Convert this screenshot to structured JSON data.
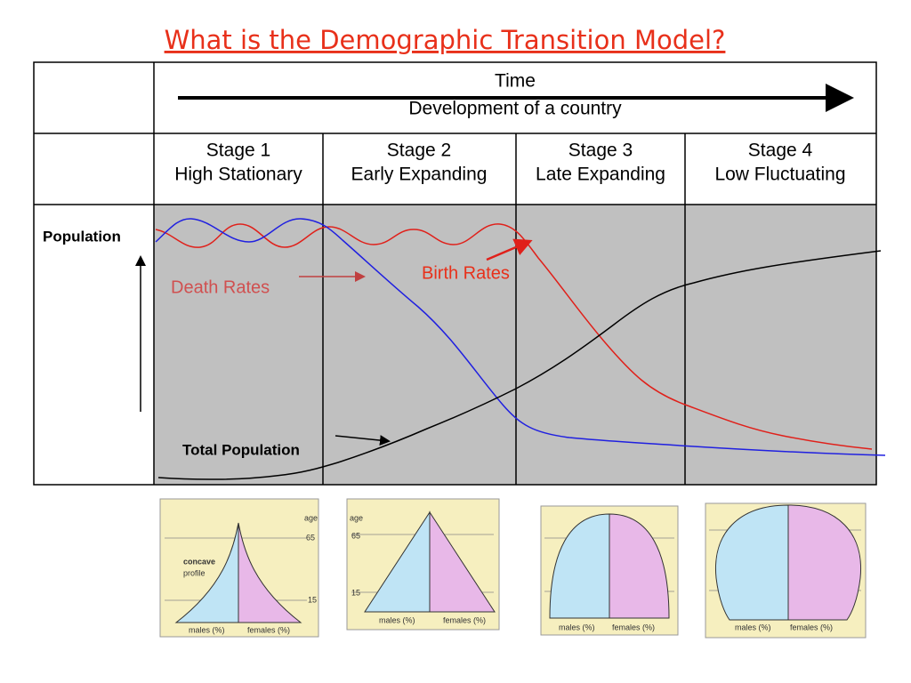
{
  "title": "What is the Demographic Transition Model?",
  "header": {
    "time": "Time",
    "subtitle": "Development of a country"
  },
  "stages": [
    {
      "number": "Stage 1",
      "name": "High Stationary"
    },
    {
      "number": "Stage 2",
      "name": "Early Expanding"
    },
    {
      "number": "Stage 3",
      "name": "Late Expanding"
    },
    {
      "number": "Stage 4",
      "name": "Low Fluctuating"
    }
  ],
  "labels": {
    "population": "Population",
    "death_rates": "Death Rates",
    "birth_rates": "Birth Rates",
    "total_population": "Total Population"
  },
  "pyramids": [
    {
      "age": "age",
      "age_65": "65",
      "age_15": "15",
      "note": [
        "concave",
        "profile"
      ],
      "males": "males (%)",
      "females": "females (%)"
    },
    {
      "age": "age",
      "age_65": "65",
      "age_15": "15",
      "males": "males (%)",
      "females": "females (%)"
    },
    {
      "males": "males (%)",
      "females": "females (%)"
    },
    {
      "males": "males (%)",
      "females": "females (%)"
    }
  ]
}
